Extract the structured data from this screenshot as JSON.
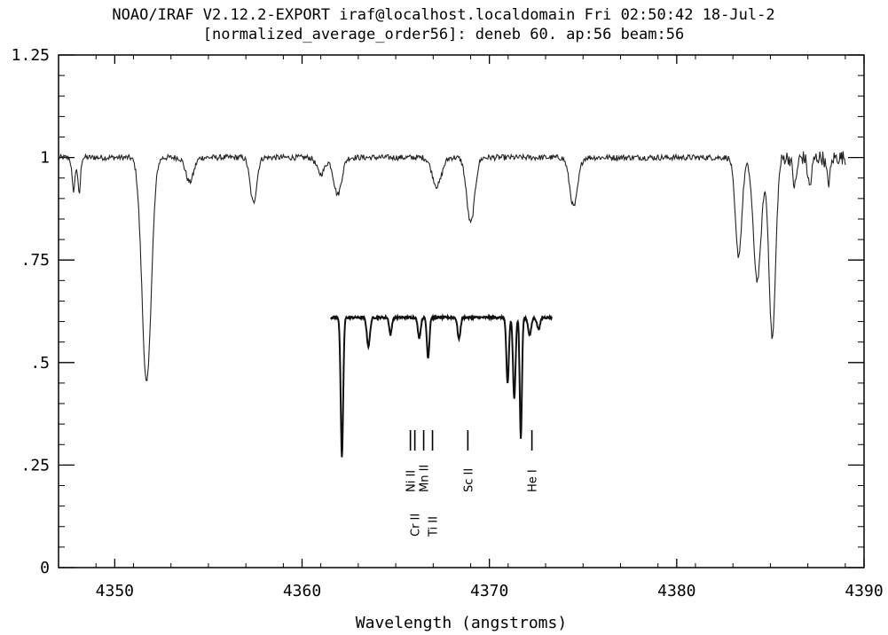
{
  "header": {
    "line1": "NOAO/IRAF V2.12.2-EXPORT iraf@localhost.localdomain Fri 02:50:42 18-Jul-2",
    "line2": "[normalized_average_order56]: deneb 60. ap:56 beam:56"
  },
  "chart_data": [
    {
      "type": "line",
      "title": "[normalized_average_order56]: deneb 60. ap:56 beam:56",
      "xlabel": "Wavelength (angstroms)",
      "ylabel": "",
      "xlim": [
        4347,
        4390
      ],
      "ylim": [
        0,
        1.25
      ],
      "grid": false,
      "x_ticks": [
        4350,
        4360,
        4370,
        4380,
        4390
      ],
      "x_tick_labels": [
        "4350",
        "4360",
        "4370",
        "4380",
        "4390"
      ],
      "y_ticks": [
        0,
        0.25,
        0.5,
        0.75,
        1,
        1.25
      ],
      "y_tick_labels": [
        "0",
        ".25",
        ".5",
        ".75",
        "1",
        "1.25"
      ],
      "continuum": 1.0,
      "absorption_lines": [
        {
          "x": 4347.8,
          "depth": 0.08
        },
        {
          "x": 4348.1,
          "depth": 0.09
        },
        {
          "x": 4351.7,
          "depth": 0.55
        },
        {
          "x": 4354.0,
          "depth": 0.06
        },
        {
          "x": 4357.4,
          "depth": 0.11
        },
        {
          "x": 4361.0,
          "depth": 0.04
        },
        {
          "x": 4361.9,
          "depth": 0.09
        },
        {
          "x": 4367.2,
          "depth": 0.07
        },
        {
          "x": 4369.0,
          "depth": 0.16
        },
        {
          "x": 4374.5,
          "depth": 0.12
        },
        {
          "x": 4383.3,
          "depth": 0.24
        },
        {
          "x": 4384.3,
          "depth": 0.3
        },
        {
          "x": 4385.1,
          "depth": 0.44
        },
        {
          "x": 4386.3,
          "depth": 0.07
        },
        {
          "x": 4387.1,
          "depth": 0.07
        },
        {
          "x": 4388.1,
          "depth": 0.06
        }
      ]
    },
    {
      "type": "line",
      "title": "",
      "continuum": 1.0,
      "absorption_lines": [
        {
          "x": 0.05,
          "depth": 0.98
        },
        {
          "x": 0.17,
          "depth": 0.2
        },
        {
          "x": 0.27,
          "depth": 0.12
        },
        {
          "x": 0.4,
          "depth": 0.14
        },
        {
          "x": 0.44,
          "depth": 0.28
        },
        {
          "x": 0.58,
          "depth": 0.15
        },
        {
          "x": 0.8,
          "depth": 0.46
        },
        {
          "x": 0.83,
          "depth": 0.57
        },
        {
          "x": 0.86,
          "depth": 0.84
        },
        {
          "x": 0.9,
          "depth": 0.12
        },
        {
          "x": 0.94,
          "depth": 0.08
        }
      ],
      "line_ids": [
        {
          "label": "Ni II",
          "x": 0.36
        },
        {
          "label": "Cr II",
          "x": 0.38
        },
        {
          "label": "Mn II",
          "x": 0.42
        },
        {
          "label": "Ti II",
          "x": 0.46
        },
        {
          "label": "Sc II",
          "x": 0.62
        },
        {
          "label": "He I",
          "x": 0.91
        }
      ]
    }
  ]
}
